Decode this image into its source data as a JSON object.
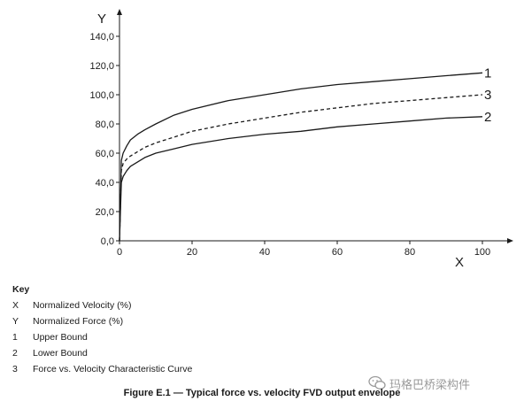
{
  "chart_data": {
    "type": "line",
    "xlabel": "X",
    "ylabel": "Y",
    "xlim": [
      0,
      100
    ],
    "ylim": [
      0,
      140
    ],
    "x_ticks": [
      "0",
      "20",
      "40",
      "60",
      "80",
      "100"
    ],
    "y_ticks": [
      "0,0",
      "20,0",
      "40,0",
      "60,0",
      "80,0",
      "100,0",
      "120,0",
      "140,0"
    ],
    "grid": false,
    "series": [
      {
        "name": "1",
        "style": "solid",
        "x": [
          0,
          0.5,
          1,
          2,
          3,
          5,
          7,
          10,
          15,
          20,
          30,
          40,
          50,
          60,
          70,
          80,
          90,
          100
        ],
        "y": [
          0,
          55,
          60,
          65,
          69,
          73,
          76,
          80,
          86,
          90,
          96,
          100,
          104,
          107,
          109,
          111,
          113,
          115
        ]
      },
      {
        "name": "3",
        "style": "dashed",
        "x": [
          0,
          0.5,
          1,
          2,
          3,
          5,
          7,
          10,
          15,
          20,
          30,
          40,
          50,
          60,
          70,
          80,
          90,
          100
        ],
        "y": [
          0,
          48,
          53,
          56,
          58,
          61,
          64,
          67,
          71,
          75,
          80,
          84,
          88,
          91,
          94,
          96,
          98,
          100
        ]
      },
      {
        "name": "2",
        "style": "solid",
        "x": [
          0,
          0.5,
          1,
          2,
          3,
          5,
          7,
          10,
          15,
          20,
          30,
          40,
          50,
          60,
          70,
          80,
          90,
          100
        ],
        "y": [
          0,
          40,
          44,
          48,
          51,
          54,
          57,
          60,
          63,
          66,
          70,
          73,
          75,
          78,
          80,
          82,
          84,
          85
        ]
      }
    ]
  },
  "key": {
    "title": "Key",
    "items": [
      {
        "sym": "X",
        "text": "Normalized Velocity (%)"
      },
      {
        "sym": "Y",
        "text": "Normalized Force (%)"
      },
      {
        "sym": "1",
        "text": "Upper Bound"
      },
      {
        "sym": "2",
        "text": "Lower Bound"
      },
      {
        "sym": "3",
        "text": "Force vs. Velocity Characteristic Curve"
      }
    ]
  },
  "caption": "Figure E.1 — Typical force vs. velocity FVD output envelope",
  "watermark": {
    "text": "玛格巴桥梁构件",
    "icon": "wechat-icon"
  },
  "colors": {
    "line": "#1a1a1a",
    "watermark": "#9a9a9a"
  }
}
